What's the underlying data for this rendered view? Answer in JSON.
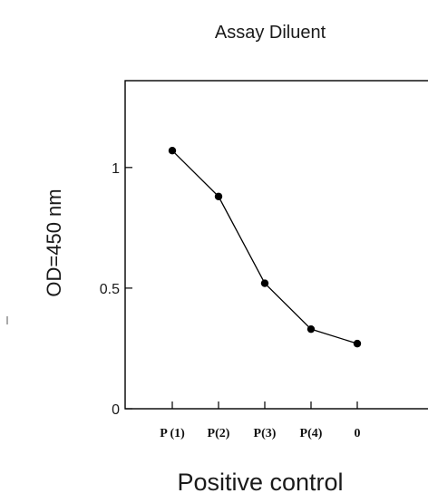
{
  "chart_data": {
    "type": "line",
    "title": "Assay Diluent",
    "xlabel": "Positive control",
    "ylabel": "OD=450 nm",
    "categories": [
      "P (1)",
      "P(2)",
      "P(3)",
      "P(4)",
      "0"
    ],
    "series": [
      {
        "values": [
          1.07,
          0.88,
          0.52,
          0.33,
          0.27
        ]
      }
    ],
    "y_ticks": [
      0,
      0.5,
      1
    ],
    "y_tick_labels": [
      "0",
      "0.5",
      "1"
    ],
    "ylim": [
      0,
      1.36
    ],
    "grid": false,
    "legend": "none",
    "colors": {
      "line": "#000000",
      "marker": "#000000",
      "axis": "#000000"
    }
  }
}
